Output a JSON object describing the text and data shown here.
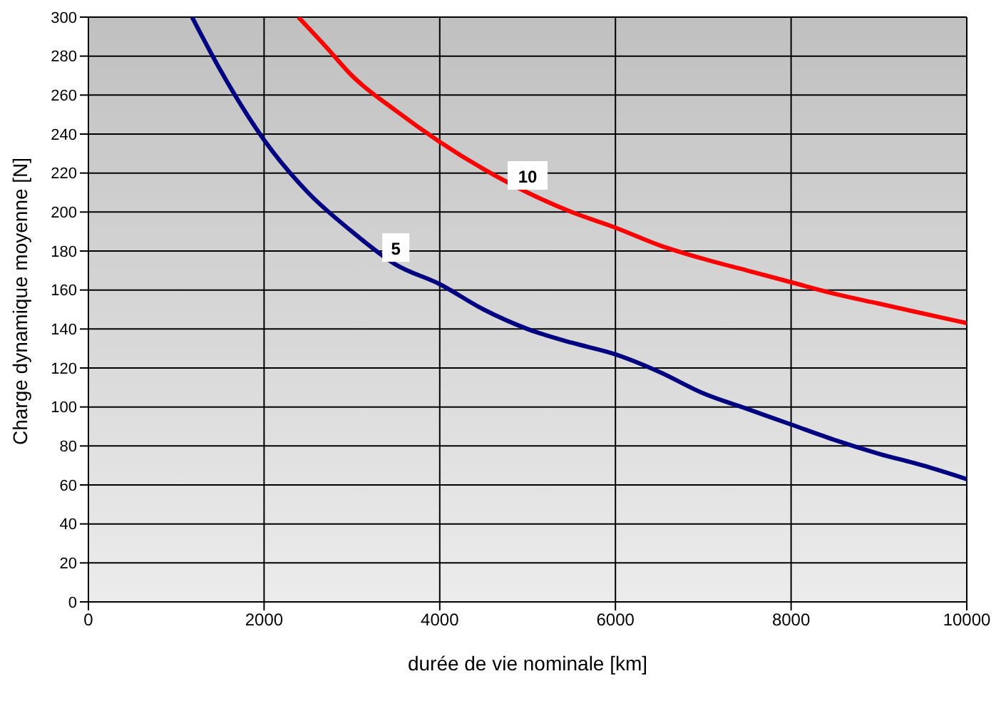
{
  "chart_data": {
    "type": "line",
    "xlabel": "durée de vie nominale [km]",
    "ylabel": "Charge  dynamique moyenne [N]",
    "xlim": [
      0,
      10000
    ],
    "xticks": [
      0,
      2000,
      4000,
      6000,
      8000,
      10000
    ],
    "ylim": [
      0,
      300
    ],
    "yticks": [
      0,
      20,
      40,
      60,
      80,
      100,
      120,
      140,
      160,
      180,
      200,
      220,
      240,
      260,
      280,
      300
    ],
    "grid": true,
    "legend": false,
    "marker": "none",
    "line_style": "solid",
    "series": [
      {
        "name": "5",
        "color": "#000080",
        "x": [
          1180,
          1500,
          2000,
          2500,
          3000,
          3500,
          4000,
          4500,
          5000,
          5500,
          6000,
          6500,
          7000,
          7500,
          8000,
          8500,
          9000,
          9500,
          10000
        ],
        "values": [
          300,
          273,
          237,
          210,
          190,
          173,
          163,
          150,
          140,
          133,
          127,
          118,
          107,
          99,
          91,
          83,
          76,
          70,
          63
        ]
      },
      {
        "name": "10",
        "color": "#ff0000",
        "x": [
          2390,
          2700,
          3000,
          3500,
          4000,
          4500,
          5000,
          5500,
          6000,
          6500,
          7000,
          7500,
          8000,
          8500,
          9000,
          9500,
          10000
        ],
        "values": [
          300,
          285,
          270,
          252,
          236,
          222,
          210,
          200,
          192,
          183,
          176,
          170,
          164,
          158,
          153,
          148,
          143
        ]
      }
    ]
  }
}
